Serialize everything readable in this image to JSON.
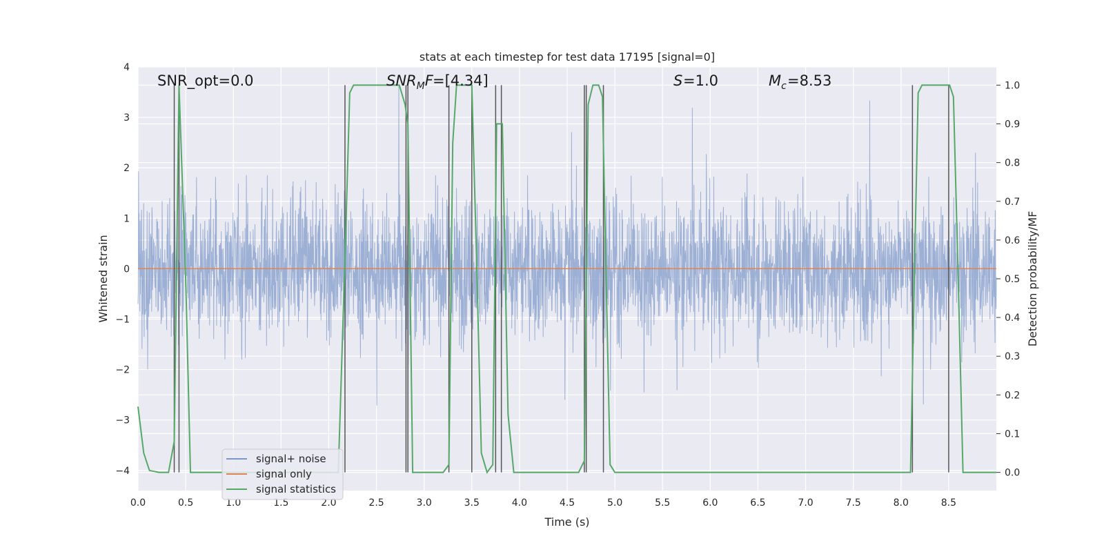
{
  "chart_data": {
    "type": "line",
    "title": "stats at each timestep for test data 17195 [signal=0]",
    "xlabel": "Time (s)",
    "ylabel": "Whitened strain",
    "y2label": "Detection probability/MF",
    "xlim": [
      0,
      9.0
    ],
    "ylim": [
      -4.4,
      4.0
    ],
    "y2lim": [
      -0.047,
      1.047
    ],
    "x_ticks": [
      "0.0",
      "0.5",
      "1.0",
      "1.5",
      "2.0",
      "2.5",
      "3.0",
      "3.5",
      "4.0",
      "4.5",
      "5.0",
      "5.5",
      "6.0",
      "6.5",
      "7.0",
      "7.5",
      "8.0",
      "8.5"
    ],
    "y_ticks": [
      "4",
      "3",
      "2",
      "1",
      "0",
      "−1",
      "−2",
      "−3",
      "−4"
    ],
    "y2_ticks": [
      "1.0",
      "0.9",
      "0.8",
      "0.7",
      "0.6",
      "0.5",
      "0.4",
      "0.3",
      "0.2",
      "0.1",
      "0.0"
    ],
    "grid": true,
    "legend_placement": "lower-left",
    "annotations": {
      "snr_opt": "SNR_opt=0.0",
      "snr_mf": "=[4.34]",
      "s": "=1.0",
      "mc": "=8.53"
    },
    "colors": {
      "noise": "#7b96c8",
      "signal": "#dd8452",
      "stats": "#55a868",
      "vlines": "#555555",
      "background": "#eaeaf2"
    },
    "series": [
      {
        "name": "signal+ noise",
        "description_range": [
          -4.0,
          3.6
        ]
      },
      {
        "name": "signal only",
        "x": [
          0,
          9.0
        ],
        "y": [
          0,
          0
        ]
      },
      {
        "name": "signal statistics",
        "axis": "right",
        "x": [
          0,
          0.06,
          0.12,
          0.22,
          0.32,
          0.38,
          0.43,
          0.5,
          0.55,
          0.6,
          0.7,
          1.0,
          1.5,
          2.0,
          2.1,
          2.17,
          2.22,
          2.26,
          2.35,
          2.5,
          2.74,
          2.8,
          2.83,
          2.88,
          3.0,
          3.2,
          3.26,
          3.3,
          3.34,
          3.4,
          3.5,
          3.55,
          3.6,
          3.66,
          3.72,
          3.76,
          3.82,
          3.88,
          3.94,
          4.0,
          4.5,
          4.62,
          4.68,
          4.72,
          4.77,
          4.83,
          4.87,
          4.9,
          4.95,
          5.0,
          5.05,
          6.0,
          7.0,
          8.0,
          8.1,
          8.14,
          8.18,
          8.22,
          8.4,
          8.51,
          8.55,
          8.6,
          8.65,
          8.7,
          9.0
        ],
        "y": [
          0.17,
          0.05,
          0.005,
          0.0,
          0.0,
          0.08,
          1.0,
          0.5,
          0.0,
          0.0,
          0.0,
          0.0,
          0.0,
          0.0,
          0.0,
          0.55,
          0.98,
          1.0,
          1.0,
          1.0,
          1.0,
          0.95,
          0.9,
          0.0,
          0.0,
          0.0,
          0.02,
          0.85,
          1.0,
          1.0,
          1.0,
          0.55,
          0.05,
          0.0,
          0.02,
          0.9,
          0.9,
          0.15,
          0.0,
          0.0,
          0.0,
          0.0,
          0.03,
          0.95,
          1.0,
          1.0,
          0.97,
          0.6,
          0.02,
          0.0,
          0.0,
          0.0,
          0.0,
          0.0,
          0.0,
          0.5,
          0.98,
          1.0,
          1.0,
          1.0,
          0.97,
          0.5,
          0.0,
          0.0,
          0.0
        ]
      }
    ],
    "vertical_lines_x": [
      0.38,
      0.43,
      2.17,
      2.81,
      2.83,
      3.26,
      3.5,
      3.75,
      3.81,
      4.68,
      4.7,
      4.88,
      8.12,
      8.5
    ]
  }
}
